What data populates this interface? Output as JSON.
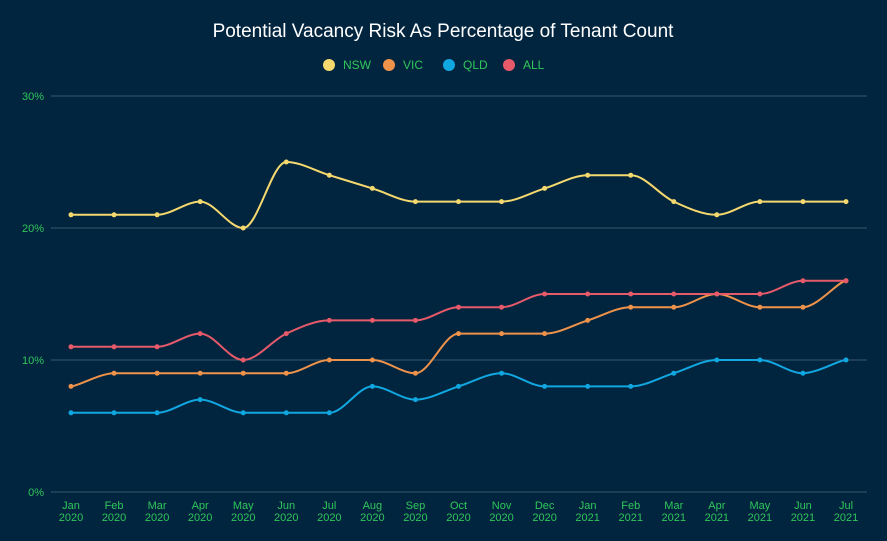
{
  "colors": {
    "background": "#02253f",
    "nsw": "#f5d96e",
    "vic": "#f0934a",
    "qld": "#11a7e0",
    "all": "#e65a6a",
    "tick_text": "#2fc65a",
    "title_text": "#ffffff"
  },
  "chart_data": {
    "type": "line",
    "title": "Potential Vacancy Risk As Percentage of Tenant Count",
    "legend_position": "top-center",
    "grid": true,
    "ylim": [
      0,
      30
    ],
    "yticks": [
      "0%",
      "10%",
      "20%",
      "30%"
    ],
    "categories": [
      [
        "Jan",
        "2020"
      ],
      [
        "Feb",
        "2020"
      ],
      [
        "Mar",
        "2020"
      ],
      [
        "Apr",
        "2020"
      ],
      [
        "May",
        "2020"
      ],
      [
        "Jun",
        "2020"
      ],
      [
        "Jul",
        "2020"
      ],
      [
        "Aug",
        "2020"
      ],
      [
        "Sep",
        "2020"
      ],
      [
        "Oct",
        "2020"
      ],
      [
        "Nov",
        "2020"
      ],
      [
        "Dec",
        "2020"
      ],
      [
        "Jan",
        "2021"
      ],
      [
        "Feb",
        "2021"
      ],
      [
        "Mar",
        "2021"
      ],
      [
        "Apr",
        "2021"
      ],
      [
        "May",
        "2021"
      ],
      [
        "Jun",
        "2021"
      ],
      [
        "Jul",
        "2021"
      ]
    ],
    "series": [
      {
        "name": "NSW",
        "color": "#f5d96e",
        "values": [
          21,
          21,
          21,
          22,
          20,
          25,
          24,
          23,
          22,
          22,
          22,
          23,
          24,
          24,
          22,
          21,
          22,
          22,
          22
        ]
      },
      {
        "name": "VIC",
        "color": "#f0934a",
        "values": [
          8,
          9,
          9,
          9,
          9,
          9,
          10,
          10,
          9,
          12,
          12,
          12,
          13,
          14,
          14,
          15,
          14,
          14,
          16
        ]
      },
      {
        "name": "QLD",
        "color": "#11a7e0",
        "values": [
          6,
          6,
          6,
          7,
          6,
          6,
          6,
          8,
          7,
          8,
          9,
          8,
          8,
          8,
          9,
          10,
          10,
          9,
          10
        ]
      },
      {
        "name": "ALL",
        "color": "#e65a6a",
        "values": [
          11,
          11,
          11,
          12,
          10,
          12,
          13,
          13,
          13,
          14,
          14,
          15,
          15,
          15,
          15,
          15,
          15,
          16,
          16
        ]
      }
    ]
  }
}
